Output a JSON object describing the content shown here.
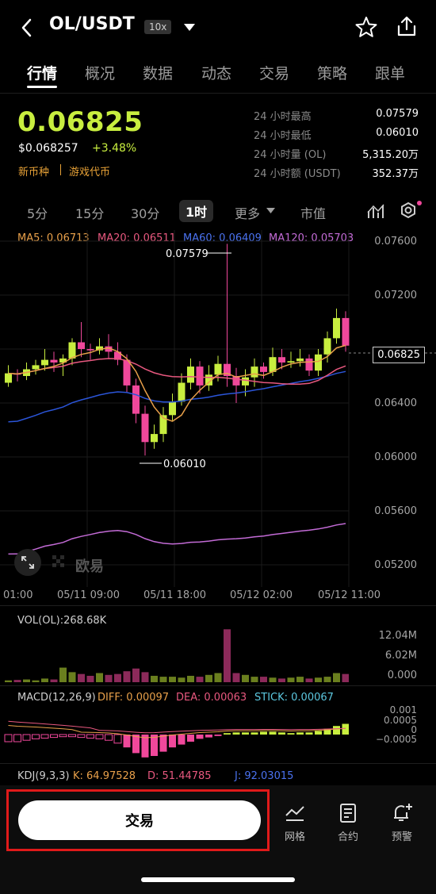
{
  "header": {
    "pair": "OL/USDT",
    "leverage": "10x"
  },
  "tabs": [
    "行情",
    "概况",
    "数据",
    "动态",
    "交易",
    "策略",
    "跟单"
  ],
  "ticker": {
    "price": "0.06825",
    "usd_price": "$0.068257",
    "change": "+3.48%",
    "tags": [
      "新币种",
      "游戏代币"
    ],
    "stats": [
      {
        "label": "24 小时最高",
        "value": "0.07579"
      },
      {
        "label": "24 小时最低",
        "value": "0.06010"
      },
      {
        "label": "24 小时量 (OL)",
        "value": "5,315.20万"
      },
      {
        "label": "24 小时额 (USDT)",
        "value": "352.37万"
      }
    ]
  },
  "timeframes": [
    "5分",
    "15分",
    "30分",
    "1时",
    "更多",
    "市值"
  ],
  "ma": {
    "ma5": "MA5: 0.06713",
    "ma20": "MA20: 0.06511",
    "ma60": "MA60: 0.06409",
    "ma120": "MA120: 0.05703"
  },
  "chart": {
    "y_ticks": [
      "0.07600",
      "0.07200",
      "0.06400",
      "0.06000",
      "0.05600",
      "0.05200"
    ],
    "current_price_tag": "0.06825",
    "high_marker": "0.07579",
    "low_marker": "0.06010",
    "x_ticks": [
      "01:00",
      "05/11 09:00",
      "05/11 18:00",
      "05/12 02:00",
      "05/12 11:00"
    ],
    "watermark": "欧易"
  },
  "volume": {
    "label": "VOL(OL):268.68K",
    "ticks": [
      "12.04M",
      "6.02M",
      "0.000"
    ]
  },
  "macd": {
    "label": "MACD(12,26,9)",
    "diff": "DIFF: 0.00097",
    "dea": "DEA: 0.00063",
    "stick": "STICK: 0.00067",
    "ticks": [
      "0.001",
      "0.0005",
      "0",
      "−0.0005"
    ]
  },
  "kdj": {
    "label": "KDJ(9,3,3)",
    "k": "K: 64.97528",
    "d": "D: 51.44785",
    "j": "J: 92.03015"
  },
  "bottom": {
    "trade_label": "交易",
    "nav": [
      "网格",
      "合约",
      "预警"
    ]
  },
  "colors": {
    "up": "#c8ee3f",
    "down": "#f0489b",
    "ma5": "#e8a04a",
    "ma20": "#e8587f",
    "ma60": "#2b55d9",
    "ma120": "#c36bd6"
  }
}
